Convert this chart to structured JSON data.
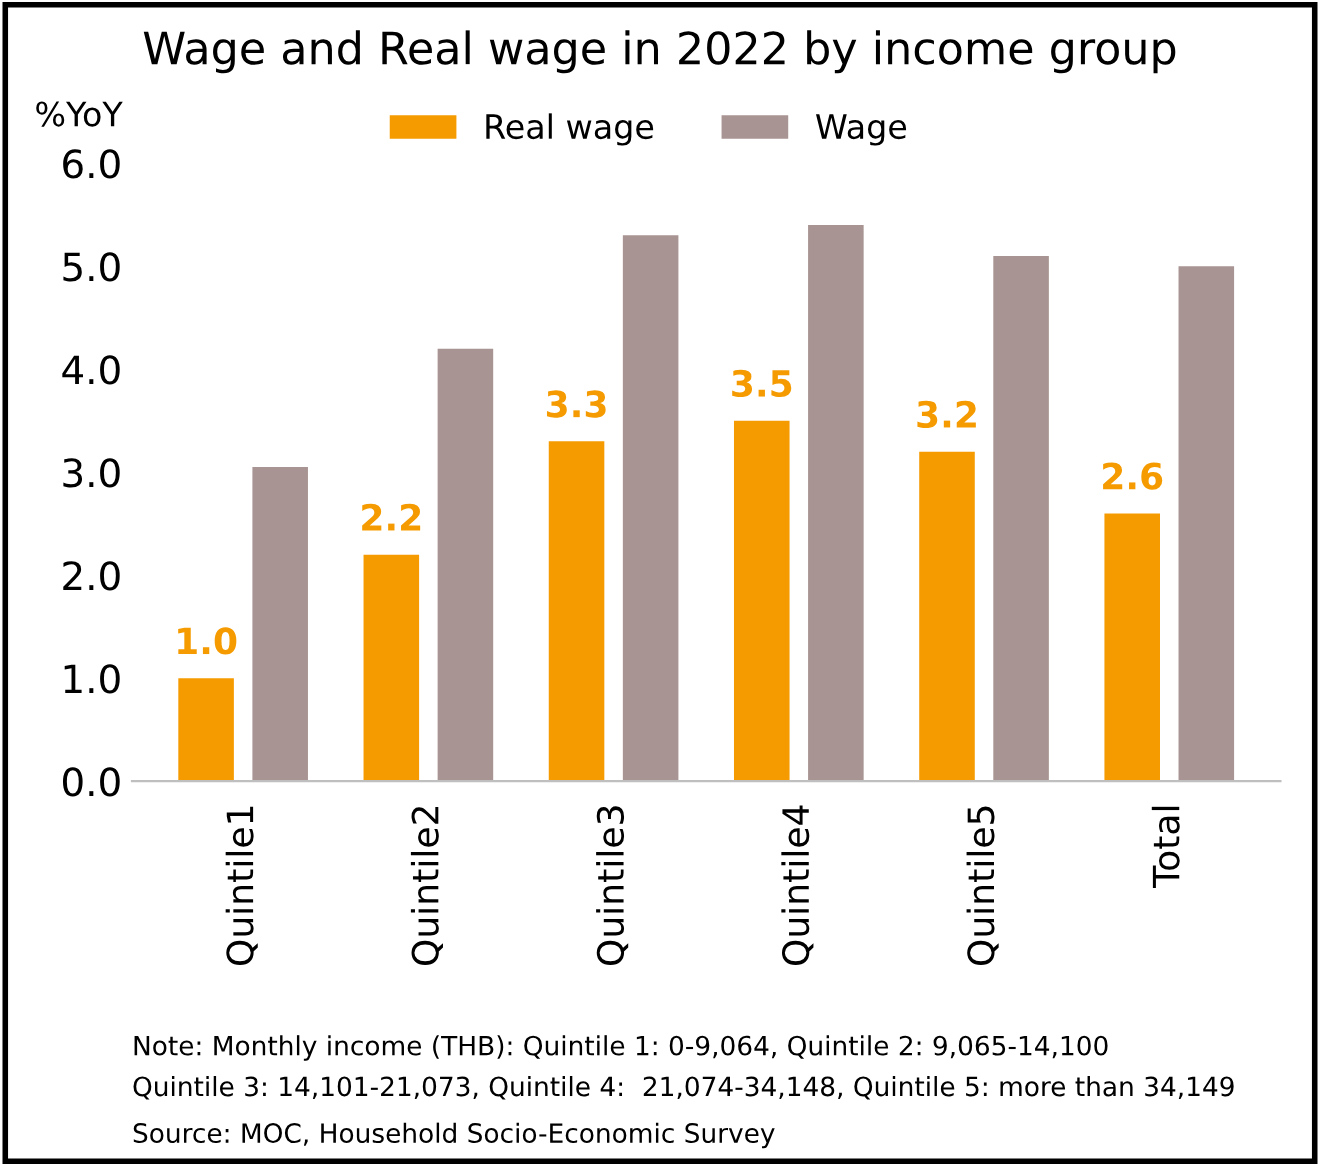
{
  "chart_data": {
    "type": "bar",
    "title": "Wage and Real wage in 2022 by income group",
    "ylabel": "%YoY",
    "categories": [
      "Quintile1",
      "Quintile2",
      "Quintile3",
      "Quintile4",
      "Quintile5",
      "Total"
    ],
    "series": [
      {
        "name": "Real wage",
        "color": "#f59b00",
        "values": [
          1.0,
          2.2,
          3.3,
          3.5,
          3.2,
          2.6
        ],
        "value_labels": [
          "1.0",
          "2.2",
          "3.3",
          "3.5",
          "3.2",
          "2.6"
        ]
      },
      {
        "name": "Wage",
        "color": "#a89593",
        "values": [
          3.05,
          4.2,
          5.3,
          5.4,
          5.1,
          5.0
        ]
      }
    ],
    "ylim": [
      0,
      6.0
    ],
    "yticks": [
      {
        "value": 0,
        "label": "0.0"
      },
      {
        "value": 1,
        "label": "1.0"
      },
      {
        "value": 2,
        "label": "2.0"
      },
      {
        "value": 3,
        "label": "3.0"
      },
      {
        "value": 4,
        "label": "4.0"
      },
      {
        "value": 5,
        "label": "5.0"
      },
      {
        "value": 6,
        "label": "6.0"
      }
    ],
    "grid": false,
    "legend": "top",
    "annotations": [
      "Note: Monthly income (THB): Quintile 1: 0-9,064, Quintile 2: 9,065-14,100",
      "Quintile 3: 14,101-21,073, Quintile 4:  21,074-34,148, Quintile 5: more than 34,149",
      "Source: MOC, Household Socio-Economic Survey"
    ]
  }
}
